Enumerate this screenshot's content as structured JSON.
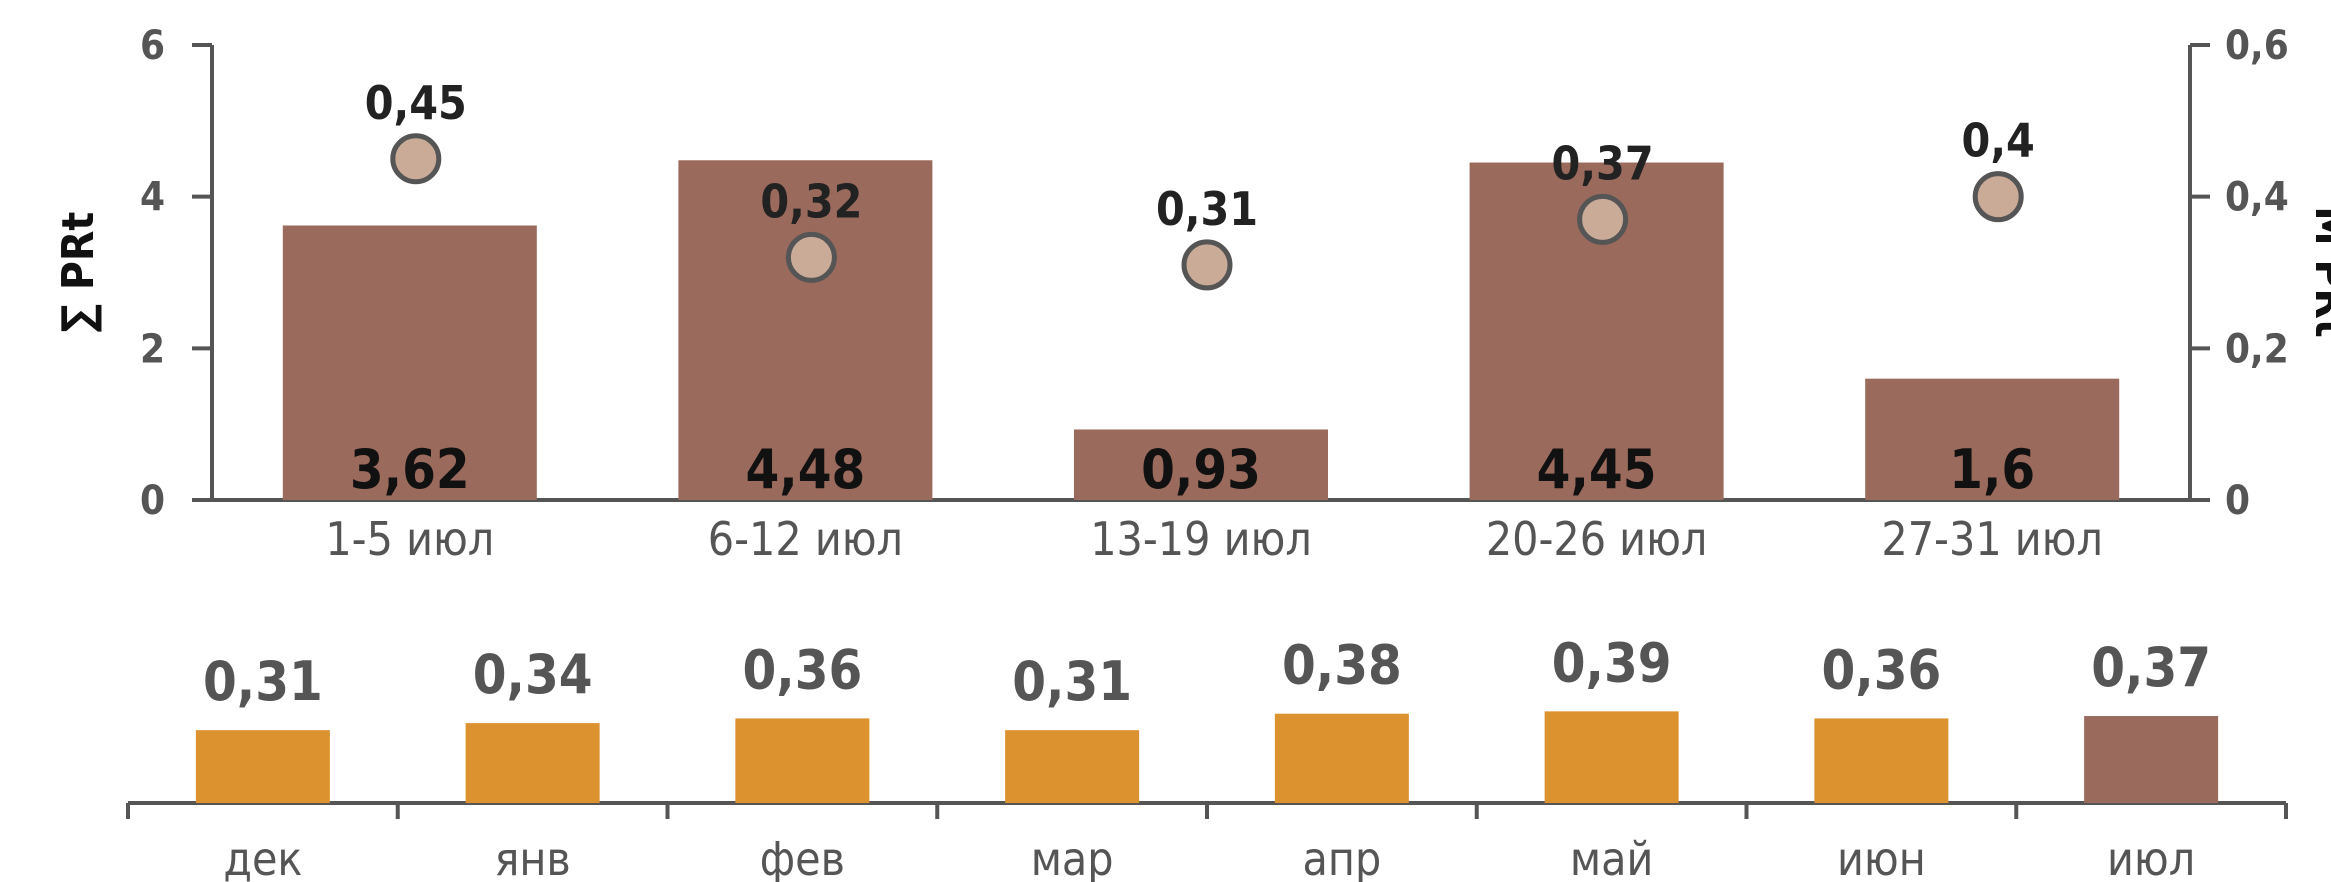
{
  "colors": {
    "bar_main": "#9a6a5c",
    "dot_fill": "#c9ab98",
    "dot_stroke": "#555555",
    "bar_month": "#dd9230",
    "bar_month_current": "#9a6a5c",
    "axis": "#555555"
  },
  "chart_data": [
    {
      "type": "bar",
      "categories": [
        "1-5 июл",
        "6-12 июл",
        "13-19 июл",
        "20-26 июл",
        "27-31 июл"
      ],
      "series": [
        {
          "name": "∑ PRt",
          "axis": "left",
          "type": "bar",
          "values": [
            3.62,
            4.48,
            0.93,
            4.45,
            1.6
          ],
          "labels": [
            "3,62",
            "4,48",
            "0,93",
            "4,45",
            "1,6"
          ]
        },
        {
          "name": "M PRt",
          "axis": "right",
          "type": "scatter",
          "values": [
            0.45,
            0.32,
            0.31,
            0.37,
            0.4
          ],
          "labels": [
            "0,45",
            "0,32",
            "0,31",
            "0,37",
            "0,4"
          ]
        }
      ],
      "ylabel": "∑ PRt",
      "ylabel_right": "M PRt",
      "ylim": [
        0,
        6
      ],
      "yticks": [
        "0",
        "2",
        "4",
        "6"
      ],
      "ylim_right": [
        0,
        0.6
      ],
      "yticks_right": [
        "0",
        "0,2",
        "0,4",
        "0,6"
      ],
      "grid": false
    },
    {
      "type": "bar",
      "categories": [
        "дек",
        "янв",
        "фев",
        "мар",
        "апр",
        "май",
        "июн",
        "июл"
      ],
      "values": [
        0.31,
        0.34,
        0.36,
        0.31,
        0.38,
        0.39,
        0.36,
        0.37
      ],
      "labels": [
        "0,31",
        "0,34",
        "0,36",
        "0,31",
        "0,38",
        "0,39",
        "0,36",
        "0,37"
      ],
      "highlight_index": 7,
      "grid": false
    }
  ]
}
